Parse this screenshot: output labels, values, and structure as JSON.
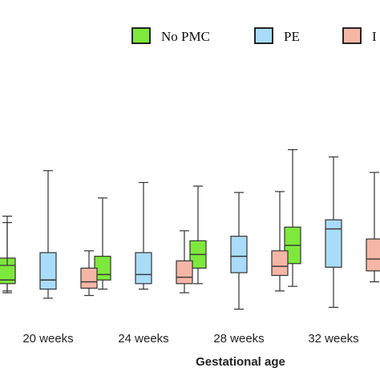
{
  "chart_data": {
    "type": "box",
    "xlabel": "Gestational age",
    "ylabel": "",
    "categories": [
      "",
      "20 weeks",
      "24 weeks",
      "28 weeks",
      "32 weeks"
    ],
    "legend": {
      "placement": "top",
      "items": [
        {
          "label": "No PMC",
          "color": "#7ee83c"
        },
        {
          "label": "PE",
          "color": "#a8dcf8"
        },
        {
          "label": "I",
          "color": "#f6b6a6"
        }
      ]
    },
    "series": [
      {
        "name": "No PMC",
        "color": "#7ee83c",
        "values": [
          {
            "min": 28,
            "q1": 38,
            "median": 42,
            "q3": 58,
            "max": 105
          },
          {
            "min": 32,
            "q1": 42,
            "median": 48,
            "q3": 68,
            "max": 132
          },
          {
            "min": 38,
            "q1": 55,
            "median": 70,
            "q3": 85,
            "max": 145
          },
          {
            "min": 35,
            "q1": 60,
            "median": 80,
            "q3": 100,
            "max": 185
          }
        ]
      },
      {
        "name": "PE",
        "color": "#a8dcf8",
        "values": [
          {
            "min": 22,
            "q1": 32,
            "median": 42,
            "q3": 72,
            "max": 162
          },
          {
            "min": 32,
            "q1": 38,
            "median": 48,
            "q3": 72,
            "max": 149
          },
          {
            "min": 10,
            "q1": 50,
            "median": 68,
            "q3": 90,
            "max": 138
          },
          {
            "min": 12,
            "q1": 56,
            "median": 98,
            "q3": 108,
            "max": 177
          }
        ]
      },
      {
        "name": "I",
        "color": "#f6b6a6",
        "values": [
          {
            "min": 25,
            "q1": 33,
            "median": 40,
            "q3": 55,
            "max": 74
          },
          {
            "min": 28,
            "q1": 38,
            "median": 45,
            "q3": 63,
            "max": 96
          },
          {
            "min": 30,
            "q1": 47,
            "median": 57,
            "q3": 74,
            "max": 139
          },
          {
            "min": 40,
            "q1": 52,
            "median": 65,
            "q3": 87,
            "max": 160
          }
        ]
      }
    ]
  }
}
